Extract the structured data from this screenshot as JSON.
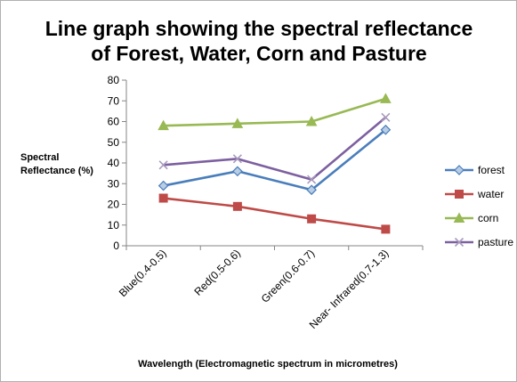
{
  "chart_data": {
    "type": "line",
    "title_lines": [
      "Line graph showing the spectral reflectance",
      "of Forest, Water, Corn and Pasture"
    ],
    "ylabel_lines": [
      "Spectral",
      "Reflectance (%)"
    ],
    "xlabel": "Wavelength (Electromagnetic spectrum in micrometres)",
    "categories": [
      "Blue(0.4-0.5)",
      "Red(0.5-0.6)",
      "Green(0.6-0.7)",
      "Near- Infrared(0.7-1.3)"
    ],
    "ylim": [
      0,
      80
    ],
    "yticks": [
      0,
      10,
      20,
      30,
      40,
      50,
      60,
      70,
      80
    ],
    "grid": false,
    "legend_position": "right",
    "series": [
      {
        "name": "forest",
        "values": [
          29,
          36,
          27,
          56
        ],
        "color": "#4a7ebb",
        "marker": "diamond"
      },
      {
        "name": "water",
        "values": [
          23,
          19,
          13,
          8
        ],
        "color": "#be4b48",
        "marker": "square"
      },
      {
        "name": "corn",
        "values": [
          58,
          59,
          60,
          71
        ],
        "color": "#98b954",
        "marker": "triangle"
      },
      {
        "name": "pasture",
        "values": [
          39,
          42,
          32,
          62
        ],
        "color": "#7d60a0",
        "marker": "x"
      }
    ]
  }
}
